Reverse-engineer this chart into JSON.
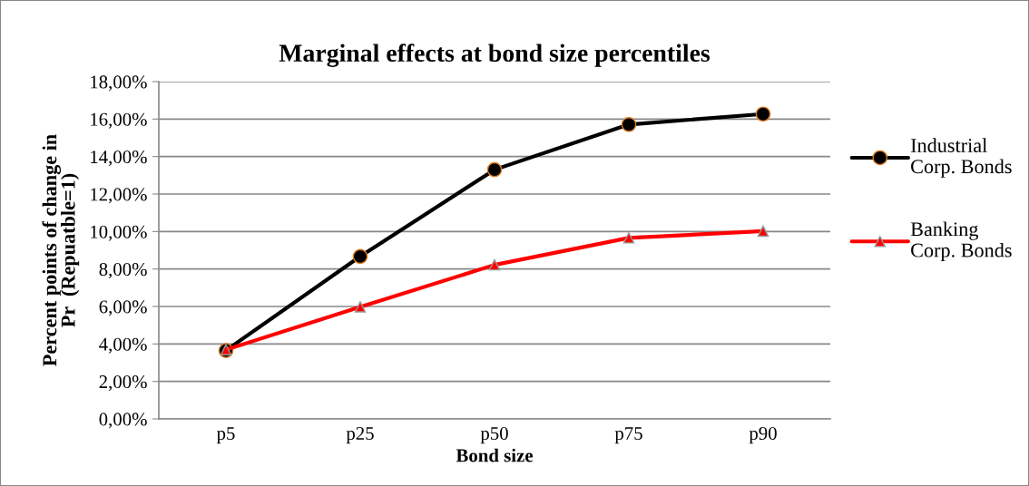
{
  "chart_data": {
    "type": "line",
    "title": "Marginal effects at bond size percentiles",
    "xlabel": "Bond size",
    "ylabel": "Percent points of change in\nPr  (Repuatble=1)",
    "categories": [
      "p5",
      "p25",
      "p50",
      "p75",
      "p90"
    ],
    "series": [
      {
        "name": "Industrial\nCorp. Bonds",
        "color": "#000000",
        "marker": "circle",
        "values": [
          3.65,
          8.67,
          13.3,
          15.71,
          16.27
        ]
      },
      {
        "name": "Banking\nCorp. Bonds",
        "color": "#ff0000",
        "marker": "triangle",
        "values": [
          3.69,
          5.98,
          8.22,
          9.66,
          10.02
        ]
      }
    ],
    "ylim": [
      0,
      18
    ],
    "yticks": [
      {
        "value": 0,
        "label": "0,00%"
      },
      {
        "value": 2,
        "label": "2,00%"
      },
      {
        "value": 4,
        "label": "4,00%"
      },
      {
        "value": 6,
        "label": "6,00%"
      },
      {
        "value": 8,
        "label": "8,00%"
      },
      {
        "value": 10,
        "label": "10,00%"
      },
      {
        "value": 12,
        "label": "12,00%"
      },
      {
        "value": 14,
        "label": "14,00%"
      },
      {
        "value": 16,
        "label": "16,00%"
      },
      {
        "value": 18,
        "label": "18,00%"
      }
    ],
    "grid": "y",
    "legend": "right",
    "line_style": "solid"
  }
}
